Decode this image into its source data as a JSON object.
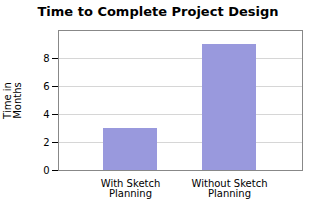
{
  "chart_data": {
    "type": "bar",
    "title": "Time to Complete Project Design",
    "categories": [
      "With Sketch\nPlanning",
      "Without Sketch\nPlanning"
    ],
    "values": [
      3,
      9
    ],
    "color": "#9999dd",
    "ylabel": "Time in\nMonths",
    "ylim": [
      0,
      10
    ],
    "yticks": [
      0,
      2,
      4,
      6,
      8
    ],
    "grid": true
  }
}
